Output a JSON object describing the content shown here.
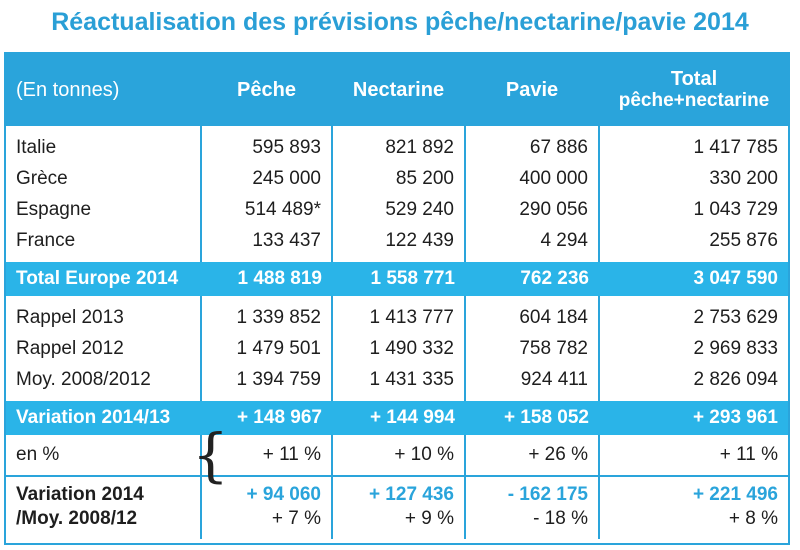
{
  "title": "Réactualisation des prévisions pêche/nectarine/pavie 2014",
  "header": {
    "unit": "(En tonnes)",
    "col1": "Pêche",
    "col2": "Nectarine",
    "col3": "Pavie",
    "col4_line1": "Total",
    "col4_line2": "pêche+nectarine"
  },
  "countries": [
    {
      "label": "Italie",
      "peche": "595 893",
      "nectarine": "821 892",
      "pavie": "67 886",
      "total": "1 417 785"
    },
    {
      "label": "Grèce",
      "peche": "245 000",
      "nectarine": "85 200",
      "pavie": "400 000",
      "total": "330 200"
    },
    {
      "label": "Espagne",
      "peche": "514 489*",
      "nectarine": "529 240",
      "pavie": "290 056",
      "total": "1 043 729"
    },
    {
      "label": "France",
      "peche": "133 437",
      "nectarine": "122 439",
      "pavie": "4 294",
      "total": "255 876"
    }
  ],
  "total_europe": {
    "label": "Total Europe 2014",
    "peche": "1 488 819",
    "nectarine": "1 558 771",
    "pavie": "762 236",
    "total": "3 047 590"
  },
  "history": [
    {
      "label": "Rappel 2013",
      "peche": "1 339 852",
      "nectarine": "1 413 777",
      "pavie": "604 184",
      "total": "2 753 629"
    },
    {
      "label": "Rappel 2012",
      "peche": "1 479 501",
      "nectarine": "1 490 332",
      "pavie": "758 782",
      "total": "2 969 833"
    },
    {
      "label": "Moy. 2008/2012",
      "peche": "1 394 759",
      "nectarine": "1 431 335",
      "pavie": "924 411",
      "total": "2 826 094"
    }
  ],
  "variation_2013": {
    "label": "Variation 2014/13",
    "peche": "+ 148 967",
    "nectarine": "+ 144 994",
    "pavie": "+ 158 052",
    "total": "+ 293 961"
  },
  "percent_2013": {
    "label": "en %",
    "peche": "+ 11 %",
    "nectarine": "+ 10 %",
    "pavie": "+ 26 %",
    "total": "+ 11 %"
  },
  "variation_avg": {
    "label_line1": "Variation 2014",
    "label_line2": "/Moy. 2008/12",
    "brace": "{",
    "peche": "+ 94 060",
    "peche_pct": "+ 7 %",
    "nectarine": "+ 127 436",
    "nectarine_pct": "+ 9 %",
    "pavie": "- 162 175",
    "pavie_pct": "- 18 %",
    "total": "+ 221 496",
    "total_pct": "+ 8 %"
  },
  "colors": {
    "accent": "#2aa4db",
    "band": "#2ab4e8",
    "text": "#1e1e1e"
  }
}
